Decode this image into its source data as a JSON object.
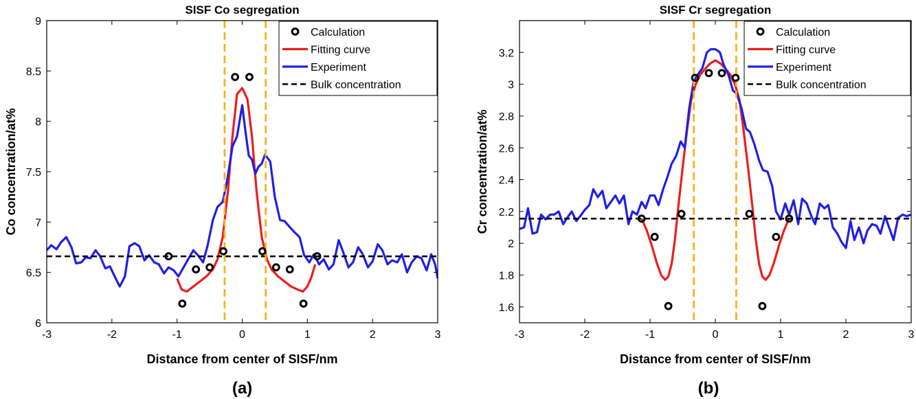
{
  "chart_data": [
    {
      "type": "line",
      "panel_label": "(a)",
      "title": "SISF Co segregation",
      "xlabel": "Distance from center of SISF/nm",
      "ylabel": "Co concentration/at%",
      "xlim": [
        -3,
        3
      ],
      "ylim": [
        6,
        9
      ],
      "xticks": [
        "-3",
        "-2",
        "-1",
        "0",
        "1",
        "2",
        "3"
      ],
      "yticks": [
        "6",
        "6.5",
        "7",
        "7.5",
        "8",
        "8.5",
        "9"
      ],
      "legend_position": "top-right",
      "legend": [
        "Calculation",
        "Fitting curve",
        "Experiment",
        "Bulk concentration"
      ],
      "vlines": [
        -0.27,
        0.36
      ],
      "bulk": 6.66,
      "series": [
        {
          "name": "Calculation",
          "style": "circles",
          "color": "#000000",
          "x": [
            -1.13,
            -0.92,
            -0.71,
            -0.5,
            -0.29,
            -0.11,
            0.11,
            0.31,
            0.52,
            0.73,
            0.94,
            1.15
          ],
          "y": [
            6.66,
            6.19,
            6.53,
            6.55,
            6.71,
            8.44,
            8.44,
            6.71,
            6.55,
            6.53,
            6.19,
            6.66
          ]
        },
        {
          "name": "Fitting curve",
          "style": "line",
          "color": "#ee1c1c",
          "x": [
            -1.0,
            -0.93,
            -0.85,
            -0.75,
            -0.65,
            -0.55,
            -0.45,
            -0.38,
            -0.3,
            -0.22,
            -0.15,
            -0.08,
            0.0,
            0.08,
            0.15,
            0.22,
            0.3,
            0.38,
            0.45,
            0.55,
            0.65,
            0.75,
            0.85,
            0.93,
            1.0,
            1.06,
            1.12
          ],
          "y": [
            6.44,
            6.33,
            6.31,
            6.36,
            6.41,
            6.46,
            6.53,
            6.63,
            6.85,
            7.3,
            7.85,
            8.27,
            8.33,
            8.22,
            7.85,
            7.3,
            6.85,
            6.63,
            6.53,
            6.46,
            6.41,
            6.36,
            6.33,
            6.31,
            6.36,
            6.45,
            6.58
          ]
        },
        {
          "name": "Experiment",
          "style": "line",
          "color": "#1f1fe8",
          "x": [
            -3.0,
            -2.93,
            -2.85,
            -2.78,
            -2.7,
            -2.62,
            -2.55,
            -2.47,
            -2.4,
            -2.33,
            -2.25,
            -2.18,
            -2.1,
            -2.03,
            -1.95,
            -1.88,
            -1.8,
            -1.73,
            -1.65,
            -1.58,
            -1.5,
            -1.43,
            -1.35,
            -1.28,
            -1.2,
            -1.13,
            -1.05,
            -0.98,
            -0.9,
            -0.83,
            -0.75,
            -0.68,
            -0.6,
            -0.53,
            -0.45,
            -0.38,
            -0.3,
            -0.23,
            -0.15,
            -0.08,
            0.0,
            0.05,
            0.1,
            0.15,
            0.2,
            0.25,
            0.3,
            0.35,
            0.43,
            0.5,
            0.58,
            0.65,
            0.73,
            0.8,
            0.88,
            0.95,
            1.03,
            1.1,
            1.18,
            1.25,
            1.33,
            1.4,
            1.48,
            1.55,
            1.63,
            1.7,
            1.78,
            1.85,
            1.93,
            2.0,
            2.08,
            2.15,
            2.23,
            2.3,
            2.38,
            2.45,
            2.53,
            2.6,
            2.68,
            2.75,
            2.83,
            2.9,
            2.96,
            3.0
          ],
          "y": [
            6.72,
            6.77,
            6.73,
            6.8,
            6.85,
            6.75,
            6.59,
            6.6,
            6.65,
            6.64,
            6.72,
            6.66,
            6.54,
            6.56,
            6.45,
            6.36,
            6.46,
            6.76,
            6.79,
            6.76,
            6.62,
            6.67,
            6.6,
            6.58,
            6.49,
            6.55,
            6.52,
            6.46,
            6.55,
            6.63,
            6.72,
            6.67,
            6.6,
            6.77,
            7.02,
            7.15,
            7.2,
            7.42,
            7.75,
            7.85,
            8.16,
            7.9,
            7.66,
            7.62,
            7.48,
            7.55,
            7.58,
            7.67,
            7.6,
            7.25,
            7.02,
            7.01,
            6.95,
            6.9,
            6.85,
            6.67,
            6.6,
            6.68,
            6.58,
            6.63,
            6.53,
            6.58,
            6.82,
            6.7,
            6.55,
            6.6,
            6.75,
            6.68,
            6.55,
            6.61,
            6.78,
            6.72,
            6.58,
            6.62,
            6.6,
            6.68,
            6.5,
            6.6,
            6.66,
            6.64,
            6.52,
            6.68,
            6.58,
            6.44
          ]
        }
      ]
    },
    {
      "type": "line",
      "panel_label": "(b)",
      "title": "SISF Cr segregation",
      "xlabel": "Distance from center of SISF/nm",
      "ylabel": "Cr concentration/at%",
      "xlim": [
        -3,
        3
      ],
      "ylim": [
        1.5,
        3.4
      ],
      "xticks": [
        "-3",
        "-2",
        "-1",
        "0",
        "1",
        "2",
        "3"
      ],
      "yticks": [
        "1.6",
        "1.8",
        "2",
        "2.2",
        "2.4",
        "2.6",
        "2.8",
        "3",
        "3.2"
      ],
      "legend_position": "top-right",
      "legend": [
        "Calculation",
        "Fitting curve",
        "Experiment",
        "Bulk concentration"
      ],
      "vlines": [
        -0.33,
        0.32
      ],
      "bulk": 2.155,
      "series": [
        {
          "name": "Calculation",
          "style": "circles",
          "color": "#000000",
          "x": [
            -1.13,
            -0.93,
            -0.72,
            -0.52,
            -0.31,
            -0.1,
            0.1,
            0.31,
            0.52,
            0.72,
            0.93,
            1.13
          ],
          "y": [
            2.155,
            2.04,
            1.605,
            2.185,
            3.04,
            3.07,
            3.07,
            3.04,
            2.185,
            1.605,
            2.04,
            2.155
          ]
        },
        {
          "name": "Fitting curve",
          "style": "line",
          "color": "#ee1c1c",
          "x": [
            -1.13,
            -1.05,
            -0.97,
            -0.9,
            -0.83,
            -0.77,
            -0.72,
            -0.67,
            -0.62,
            -0.57,
            -0.5,
            -0.43,
            -0.37,
            -0.3,
            -0.23,
            -0.15,
            -0.08,
            0.0,
            0.08,
            0.15,
            0.23,
            0.3,
            0.37,
            0.43,
            0.5,
            0.57,
            0.62,
            0.67,
            0.72,
            0.77,
            0.83,
            0.9,
            0.97,
            1.05,
            1.13
          ],
          "y": [
            2.155,
            2.08,
            1.98,
            1.88,
            1.8,
            1.77,
            1.79,
            1.87,
            2.02,
            2.22,
            2.48,
            2.72,
            2.9,
            3.0,
            3.06,
            3.1,
            3.13,
            3.15,
            3.13,
            3.1,
            3.06,
            3.0,
            2.9,
            2.72,
            2.48,
            2.22,
            2.02,
            1.87,
            1.79,
            1.77,
            1.8,
            1.88,
            1.98,
            2.08,
            2.155
          ]
        },
        {
          "name": "Experiment",
          "style": "line",
          "color": "#1f1fe8",
          "x": [
            -3.0,
            -2.93,
            -2.87,
            -2.8,
            -2.73,
            -2.67,
            -2.6,
            -2.53,
            -2.47,
            -2.4,
            -2.33,
            -2.27,
            -2.2,
            -2.13,
            -2.07,
            -2.0,
            -1.93,
            -1.87,
            -1.8,
            -1.73,
            -1.67,
            -1.6,
            -1.53,
            -1.47,
            -1.4,
            -1.33,
            -1.27,
            -1.2,
            -1.13,
            -1.07,
            -1.0,
            -0.93,
            -0.87,
            -0.8,
            -0.73,
            -0.67,
            -0.6,
            -0.53,
            -0.47,
            -0.4,
            -0.33,
            -0.27,
            -0.2,
            -0.13,
            -0.07,
            0.0,
            0.07,
            0.13,
            0.2,
            0.27,
            0.33,
            0.4,
            0.47,
            0.53,
            0.6,
            0.67,
            0.73,
            0.8,
            0.87,
            0.93,
            1.0,
            1.07,
            1.13,
            1.2,
            1.27,
            1.33,
            1.4,
            1.47,
            1.53,
            1.6,
            1.67,
            1.73,
            1.8,
            1.87,
            1.93,
            2.0,
            2.07,
            2.13,
            2.2,
            2.27,
            2.33,
            2.4,
            2.47,
            2.53,
            2.6,
            2.67,
            2.73,
            2.8,
            2.87,
            2.93,
            3.0
          ],
          "y": [
            2.09,
            2.1,
            2.22,
            2.06,
            2.07,
            2.18,
            2.15,
            2.18,
            2.18,
            2.2,
            2.12,
            2.16,
            2.2,
            2.14,
            2.17,
            2.21,
            2.24,
            2.34,
            2.29,
            2.33,
            2.22,
            2.26,
            2.3,
            2.25,
            2.3,
            2.12,
            2.2,
            2.18,
            2.26,
            2.22,
            2.3,
            2.3,
            2.24,
            2.34,
            2.42,
            2.5,
            2.55,
            2.64,
            2.6,
            2.85,
            3.02,
            3.06,
            3.1,
            3.2,
            3.22,
            3.22,
            3.2,
            3.12,
            3.06,
            2.96,
            2.94,
            2.85,
            2.72,
            2.7,
            2.62,
            2.52,
            2.46,
            2.45,
            2.36,
            2.2,
            2.15,
            2.25,
            2.18,
            2.27,
            2.12,
            2.28,
            2.25,
            2.17,
            2.12,
            2.25,
            2.22,
            2.24,
            2.1,
            2.06,
            2.01,
            1.97,
            2.14,
            2.02,
            2.1,
            2.0,
            2.08,
            2.12,
            2.11,
            2.06,
            2.17,
            2.09,
            2.02,
            2.16,
            2.18,
            2.17,
            2.18
          ]
        }
      ]
    }
  ]
}
